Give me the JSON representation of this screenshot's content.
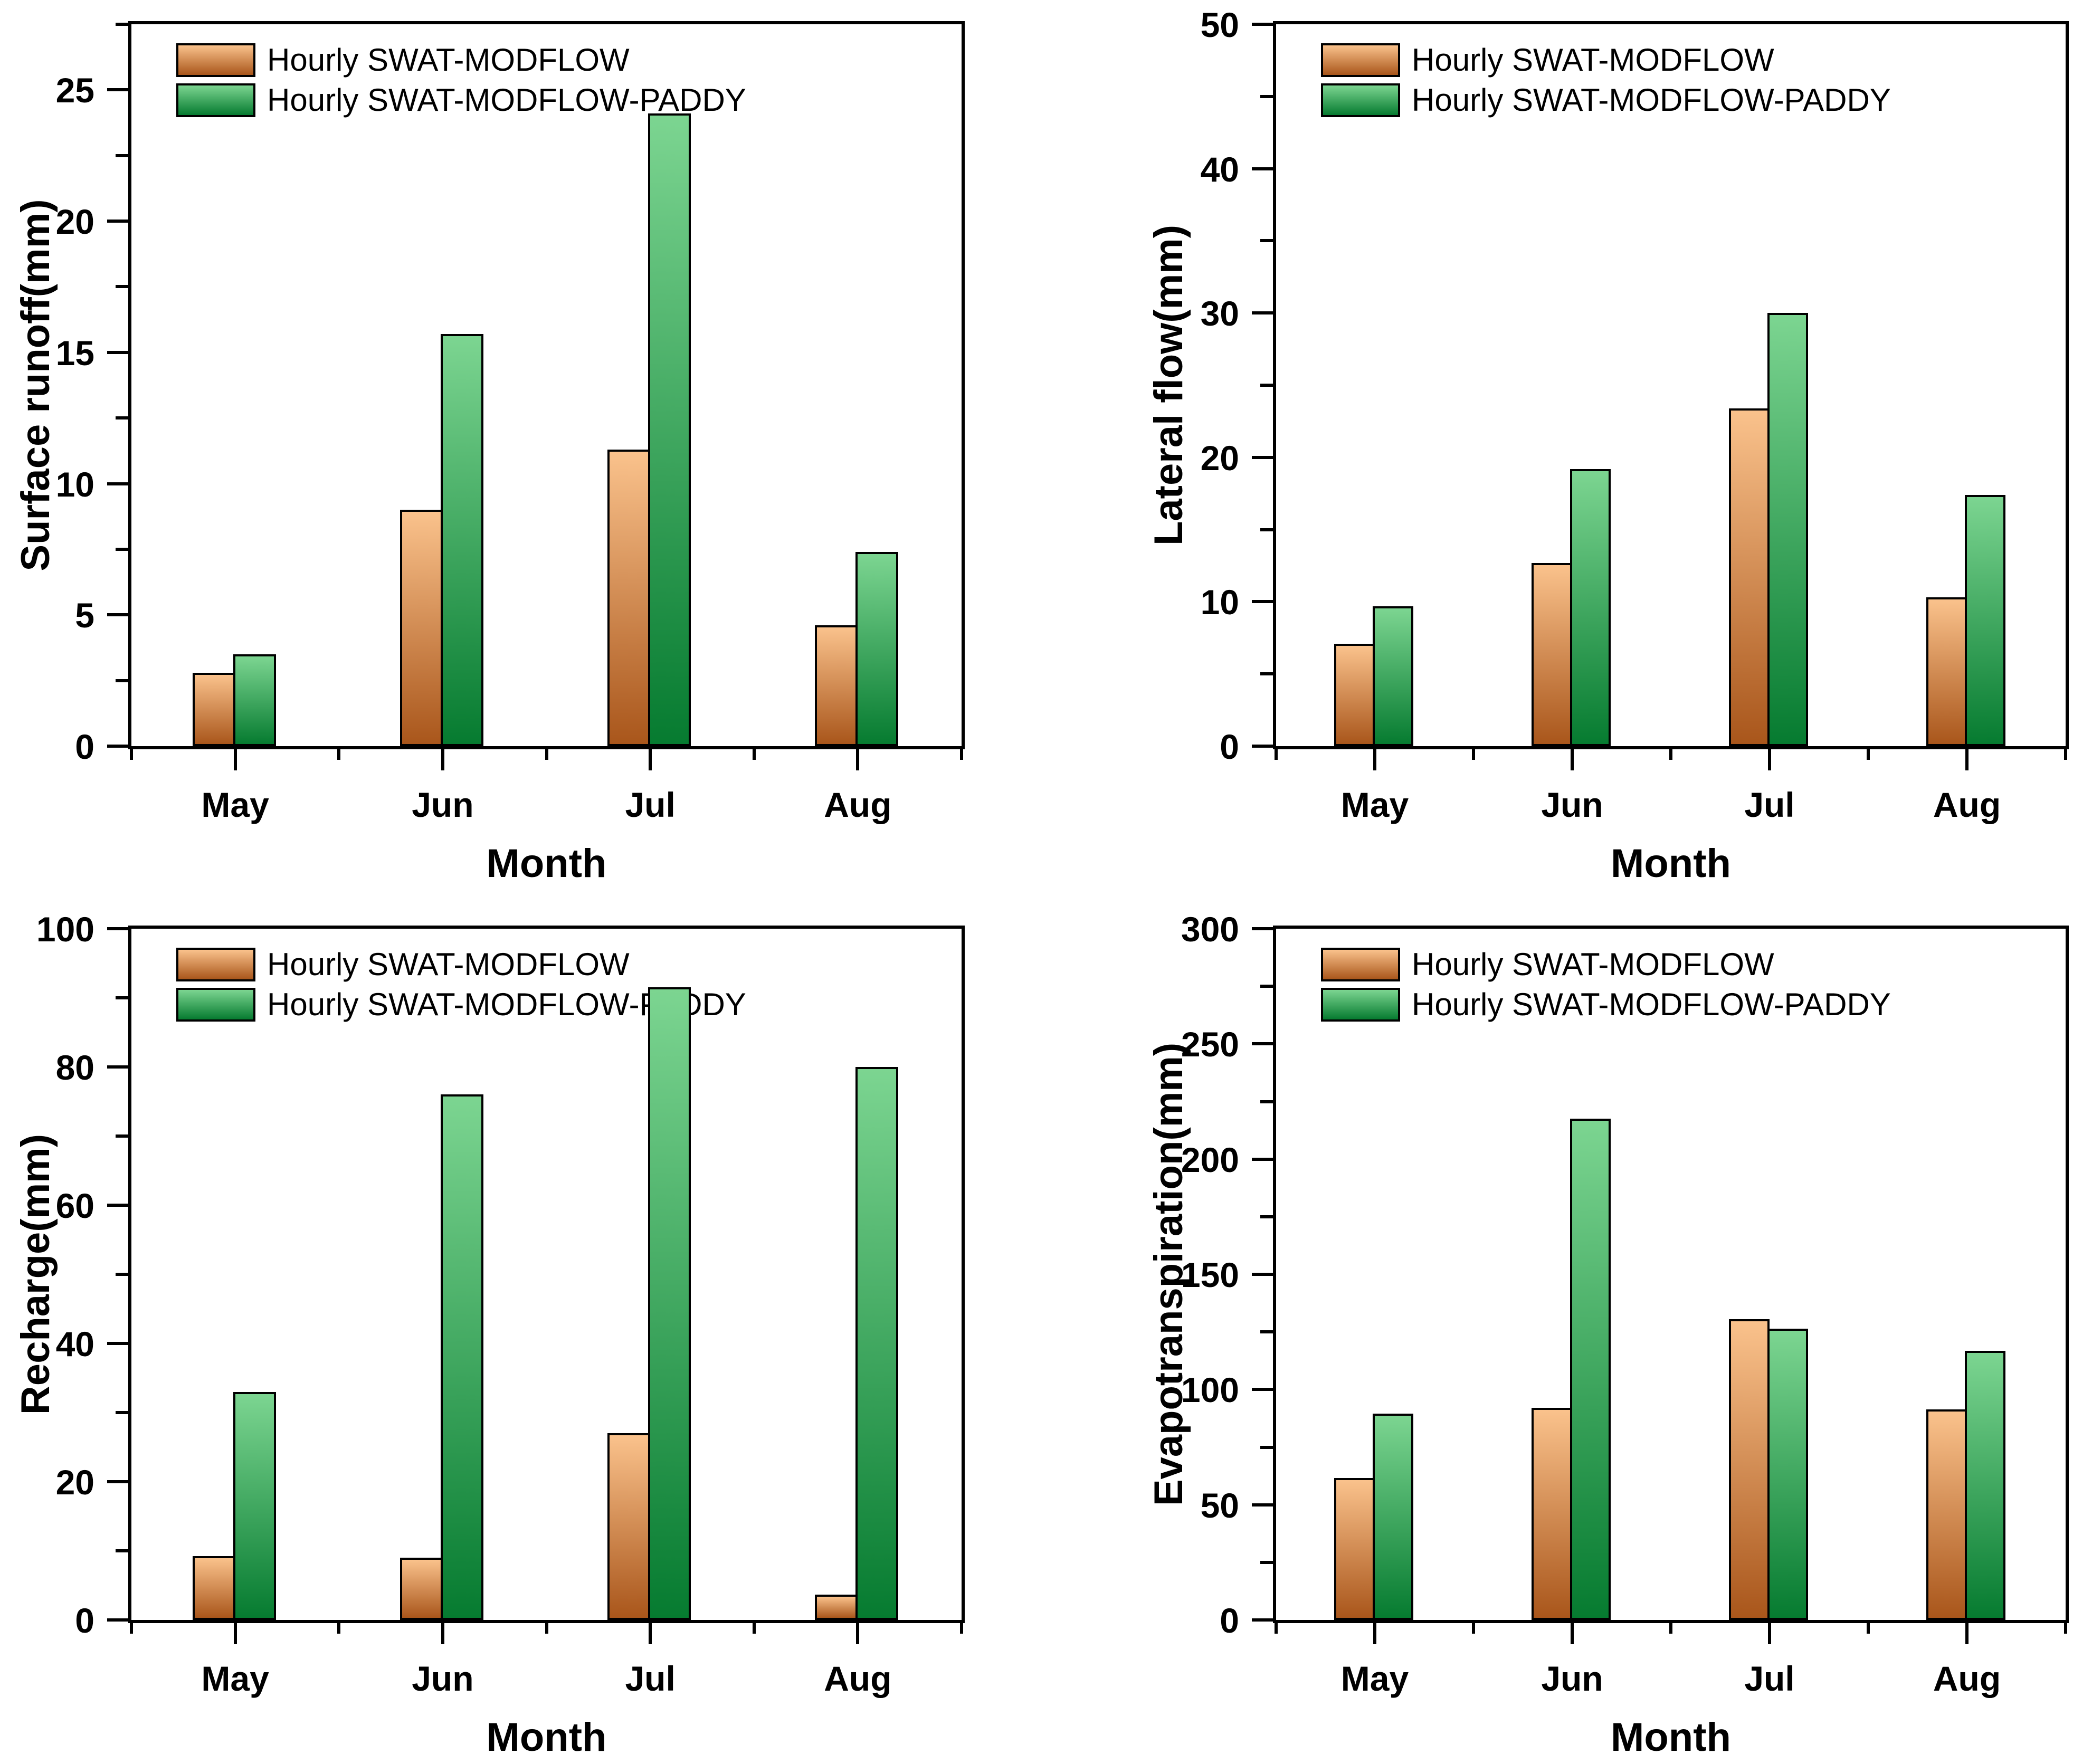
{
  "figure": {
    "background": "#ffffff",
    "xlabel": "Month",
    "categories": [
      "May",
      "Jun",
      "Jul",
      "Aug"
    ]
  },
  "legend": {
    "position": "top-left-inside",
    "items": [
      {
        "name": "hourly-swat-modflow",
        "label": "Hourly SWAT-MODFLOW",
        "gradient_top": "#FAC28C",
        "gradient_bottom": "#A9561B"
      },
      {
        "name": "hourly-swat-modflow-paddy",
        "label": "Hourly SWAT-MODFLOW-PADDY",
        "gradient_top": "#7CD591",
        "gradient_bottom": "#067B30"
      }
    ]
  },
  "chart_data": [
    {
      "type": "bar",
      "name": "surface-runoff",
      "position": "top-left",
      "ylabel": "Surface runoff(mm)",
      "xlabel": "Month",
      "categories": [
        "May",
        "Jun",
        "Jul",
        "Aug"
      ],
      "series": [
        {
          "name": "Hourly SWAT-MODFLOW",
          "values": [
            2.8,
            9.0,
            11.3,
            4.6
          ]
        },
        {
          "name": "Hourly SWAT-MODFLOW-PADDY",
          "values": [
            3.5,
            15.7,
            24.1,
            7.4
          ]
        }
      ],
      "ylim": [
        0,
        27.5
      ],
      "yticks": [
        0,
        5,
        10,
        15,
        20,
        25
      ],
      "minor_tick_step": 2.5,
      "grid": false,
      "legend_visible": true
    },
    {
      "type": "bar",
      "name": "lateral-flow",
      "position": "top-right",
      "ylabel": "Lateral flow(mm)",
      "xlabel": "Month",
      "categories": [
        "May",
        "Jun",
        "Jul",
        "Aug"
      ],
      "series": [
        {
          "name": "Hourly SWAT-MODFLOW",
          "values": [
            7.1,
            12.7,
            23.4,
            10.3
          ]
        },
        {
          "name": "Hourly SWAT-MODFLOW-PADDY",
          "values": [
            9.7,
            19.2,
            30.0,
            17.4
          ]
        }
      ],
      "ylim": [
        0,
        50
      ],
      "yticks": [
        0,
        10,
        20,
        30,
        40,
        50
      ],
      "minor_tick_step": 5,
      "grid": false,
      "legend_visible": true
    },
    {
      "type": "bar",
      "name": "recharge",
      "position": "bottom-left",
      "ylabel": "Recharge(mm)",
      "xlabel": "Month",
      "categories": [
        "May",
        "Jun",
        "Jul",
        "Aug"
      ],
      "series": [
        {
          "name": "Hourly SWAT-MODFLOW",
          "values": [
            9.2,
            9.0,
            27.0,
            3.7
          ]
        },
        {
          "name": "Hourly SWAT-MODFLOW-PADDY",
          "values": [
            33.0,
            76.0,
            91.5,
            80.0
          ]
        }
      ],
      "ylim": [
        0,
        100
      ],
      "yticks": [
        0,
        20,
        40,
        60,
        80,
        100
      ],
      "minor_tick_step": 10,
      "grid": false,
      "legend_visible": true
    },
    {
      "type": "bar",
      "name": "evapotranspiration",
      "position": "bottom-right",
      "ylabel": "Evapotranspiration(mm)",
      "xlabel": "Month",
      "categories": [
        "May",
        "Jun",
        "Jul",
        "Aug"
      ],
      "series": [
        {
          "name": "Hourly SWAT-MODFLOW",
          "values": [
            61.5,
            92.0,
            130.5,
            91.4
          ]
        },
        {
          "name": "Hourly SWAT-MODFLOW-PADDY",
          "values": [
            89.5,
            217.5,
            126.4,
            116.8
          ]
        }
      ],
      "ylim": [
        0,
        300
      ],
      "yticks": [
        0,
        50,
        100,
        150,
        200,
        250,
        300
      ],
      "minor_tick_step": 25,
      "grid": false,
      "legend_visible": true
    }
  ]
}
